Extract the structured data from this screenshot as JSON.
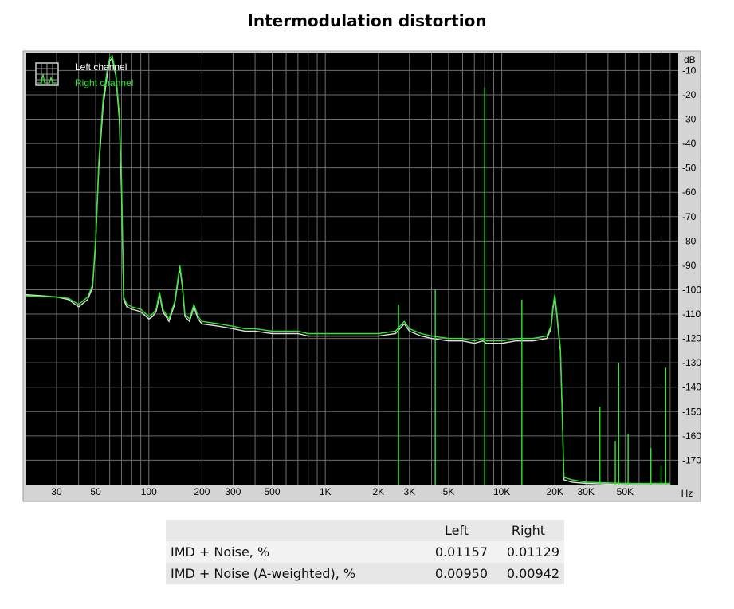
{
  "title": "Intermodulation distortion",
  "chart_data": {
    "type": "line",
    "x_scale": "log",
    "xlim": [
      20,
      100000
    ],
    "ylim": [
      -180,
      -3
    ],
    "y_unit": "dB",
    "x_unit": "Hz",
    "x_ticks": [
      {
        "value": 30,
        "label": "30"
      },
      {
        "value": 50,
        "label": "50"
      },
      {
        "value": 100,
        "label": "100"
      },
      {
        "value": 200,
        "label": "200"
      },
      {
        "value": 300,
        "label": "300"
      },
      {
        "value": 500,
        "label": "500"
      },
      {
        "value": 1000,
        "label": "1K"
      },
      {
        "value": 2000,
        "label": "2K"
      },
      {
        "value": 3000,
        "label": "3K"
      },
      {
        "value": 5000,
        "label": "5K"
      },
      {
        "value": 10000,
        "label": "10K"
      },
      {
        "value": 20000,
        "label": "20K"
      },
      {
        "value": 30000,
        "label": "30K"
      },
      {
        "value": 50000,
        "label": "50K"
      }
    ],
    "y_ticks": [
      {
        "value": -10,
        "label": "-10"
      },
      {
        "value": -20,
        "label": "-20"
      },
      {
        "value": -30,
        "label": "-30"
      },
      {
        "value": -40,
        "label": "-40"
      },
      {
        "value": -50,
        "label": "-50"
      },
      {
        "value": -60,
        "label": "-60"
      },
      {
        "value": -70,
        "label": "-70"
      },
      {
        "value": -80,
        "label": "-80"
      },
      {
        "value": -90,
        "label": "-90"
      },
      {
        "value": -100,
        "label": "-100"
      },
      {
        "value": -110,
        "label": "-110"
      },
      {
        "value": -120,
        "label": "-120"
      },
      {
        "value": -130,
        "label": "-130"
      },
      {
        "value": -140,
        "label": "-140"
      },
      {
        "value": -150,
        "label": "-150"
      },
      {
        "value": -160,
        "label": "-160"
      },
      {
        "value": -170,
        "label": "-170"
      }
    ],
    "grid": true,
    "legend_position": "top-left",
    "series": [
      {
        "name": "Left channel",
        "color": "#e0e0e0",
        "points": [
          [
            20,
            -102
          ],
          [
            25,
            -102.5
          ],
          [
            30,
            -103
          ],
          [
            35,
            -104
          ],
          [
            40,
            -107
          ],
          [
            45,
            -104
          ],
          [
            48,
            -99
          ],
          [
            50,
            -80
          ],
          [
            52,
            -50
          ],
          [
            55,
            -25
          ],
          [
            58,
            -12
          ],
          [
            60,
            -6
          ],
          [
            62,
            -5
          ],
          [
            65,
            -12
          ],
          [
            68,
            -30
          ],
          [
            70,
            -60
          ],
          [
            72,
            -104
          ],
          [
            75,
            -107
          ],
          [
            80,
            -108
          ],
          [
            90,
            -109
          ],
          [
            100,
            -112
          ],
          [
            105,
            -111
          ],
          [
            110,
            -109
          ],
          [
            115,
            -102
          ],
          [
            120,
            -109
          ],
          [
            130,
            -113
          ],
          [
            140,
            -106
          ],
          [
            150,
            -91
          ],
          [
            155,
            -99
          ],
          [
            160,
            -111
          ],
          [
            170,
            -113
          ],
          [
            180,
            -107
          ],
          [
            190,
            -112
          ],
          [
            200,
            -114
          ],
          [
            250,
            -115
          ],
          [
            300,
            -116
          ],
          [
            350,
            -117
          ],
          [
            400,
            -117
          ],
          [
            500,
            -118
          ],
          [
            600,
            -118
          ],
          [
            700,
            -118
          ],
          [
            800,
            -119
          ],
          [
            1000,
            -119
          ],
          [
            1500,
            -119
          ],
          [
            2000,
            -119
          ],
          [
            2500,
            -118
          ],
          [
            2800,
            -114
          ],
          [
            3000,
            -117
          ],
          [
            3500,
            -119
          ],
          [
            4000,
            -120
          ],
          [
            5000,
            -121
          ],
          [
            6000,
            -121
          ],
          [
            7000,
            -122
          ],
          [
            7800,
            -121
          ],
          [
            8200,
            -122
          ],
          [
            9000,
            -122
          ],
          [
            10000,
            -122
          ],
          [
            12000,
            -121
          ],
          [
            15000,
            -121
          ],
          [
            18000,
            -120
          ],
          [
            19000,
            -116
          ],
          [
            19500,
            -108
          ],
          [
            20000,
            -103
          ],
          [
            20500,
            -110
          ],
          [
            21000,
            -118
          ],
          [
            21500,
            -125
          ],
          [
            22000,
            -150
          ],
          [
            22500,
            -178
          ],
          [
            25000,
            -179
          ],
          [
            30000,
            -179.5
          ],
          [
            50000,
            -180
          ],
          [
            90000,
            -180
          ]
        ]
      },
      {
        "name": "Right channel",
        "color": "#32e632",
        "points": [
          [
            20,
            -102.5
          ],
          [
            25,
            -102.8
          ],
          [
            30,
            -103
          ],
          [
            35,
            -103.5
          ],
          [
            40,
            -106
          ],
          [
            45,
            -103
          ],
          [
            48,
            -98
          ],
          [
            50,
            -79
          ],
          [
            52,
            -48
          ],
          [
            55,
            -22
          ],
          [
            58,
            -10
          ],
          [
            60,
            -5
          ],
          [
            62,
            -4
          ],
          [
            65,
            -11
          ],
          [
            68,
            -28
          ],
          [
            70,
            -55
          ],
          [
            72,
            -103
          ],
          [
            75,
            -106
          ],
          [
            80,
            -107
          ],
          [
            90,
            -108
          ],
          [
            100,
            -111
          ],
          [
            105,
            -110
          ],
          [
            110,
            -108
          ],
          [
            115,
            -101
          ],
          [
            120,
            -108
          ],
          [
            130,
            -112
          ],
          [
            140,
            -105
          ],
          [
            150,
            -90
          ],
          [
            155,
            -98
          ],
          [
            160,
            -110
          ],
          [
            170,
            -112
          ],
          [
            180,
            -106
          ],
          [
            190,
            -111
          ],
          [
            200,
            -113
          ],
          [
            250,
            -114
          ],
          [
            300,
            -115
          ],
          [
            350,
            -116
          ],
          [
            400,
            -116
          ],
          [
            500,
            -117
          ],
          [
            600,
            -117
          ],
          [
            700,
            -117
          ],
          [
            800,
            -118
          ],
          [
            1000,
            -118
          ],
          [
            1500,
            -118
          ],
          [
            2000,
            -118
          ],
          [
            2500,
            -117
          ],
          [
            2800,
            -113
          ],
          [
            3000,
            -116
          ],
          [
            3500,
            -118
          ],
          [
            4000,
            -119
          ],
          [
            5000,
            -120
          ],
          [
            6000,
            -120
          ],
          [
            7000,
            -121
          ],
          [
            7800,
            -120
          ],
          [
            8200,
            -121
          ],
          [
            9000,
            -121
          ],
          [
            10000,
            -121
          ],
          [
            12000,
            -120
          ],
          [
            15000,
            -120
          ],
          [
            18000,
            -119
          ],
          [
            19000,
            -115
          ],
          [
            19500,
            -107
          ],
          [
            20000,
            -102
          ],
          [
            20500,
            -109
          ],
          [
            21000,
            -117
          ],
          [
            21500,
            -124
          ],
          [
            22000,
            -149
          ],
          [
            22500,
            -177
          ],
          [
            25000,
            -178
          ],
          [
            30000,
            -179
          ],
          [
            50000,
            -179.5
          ],
          [
            90000,
            -179.5
          ]
        ]
      }
    ],
    "spikes": [
      {
        "x": 8000,
        "y": -17
      },
      {
        "x": 4200,
        "y": -100
      },
      {
        "x": 2600,
        "y": -106
      },
      {
        "x": 13000,
        "y": -104
      },
      {
        "x": 36000,
        "y": -148
      },
      {
        "x": 44000,
        "y": -162
      },
      {
        "x": 46000,
        "y": -130
      },
      {
        "x": 52000,
        "y": -159
      },
      {
        "x": 70000,
        "y": -165
      },
      {
        "x": 80000,
        "y": -172
      },
      {
        "x": 85000,
        "y": -132
      }
    ]
  },
  "results_table": {
    "headers": [
      "",
      "Left",
      "Right"
    ],
    "rows": [
      {
        "label": "IMD + Noise, %",
        "left": "0.01157",
        "right": "0.01129"
      },
      {
        "label": "IMD + Noise (A-weighted), %",
        "left": "0.00950",
        "right": "0.00942"
      }
    ]
  }
}
